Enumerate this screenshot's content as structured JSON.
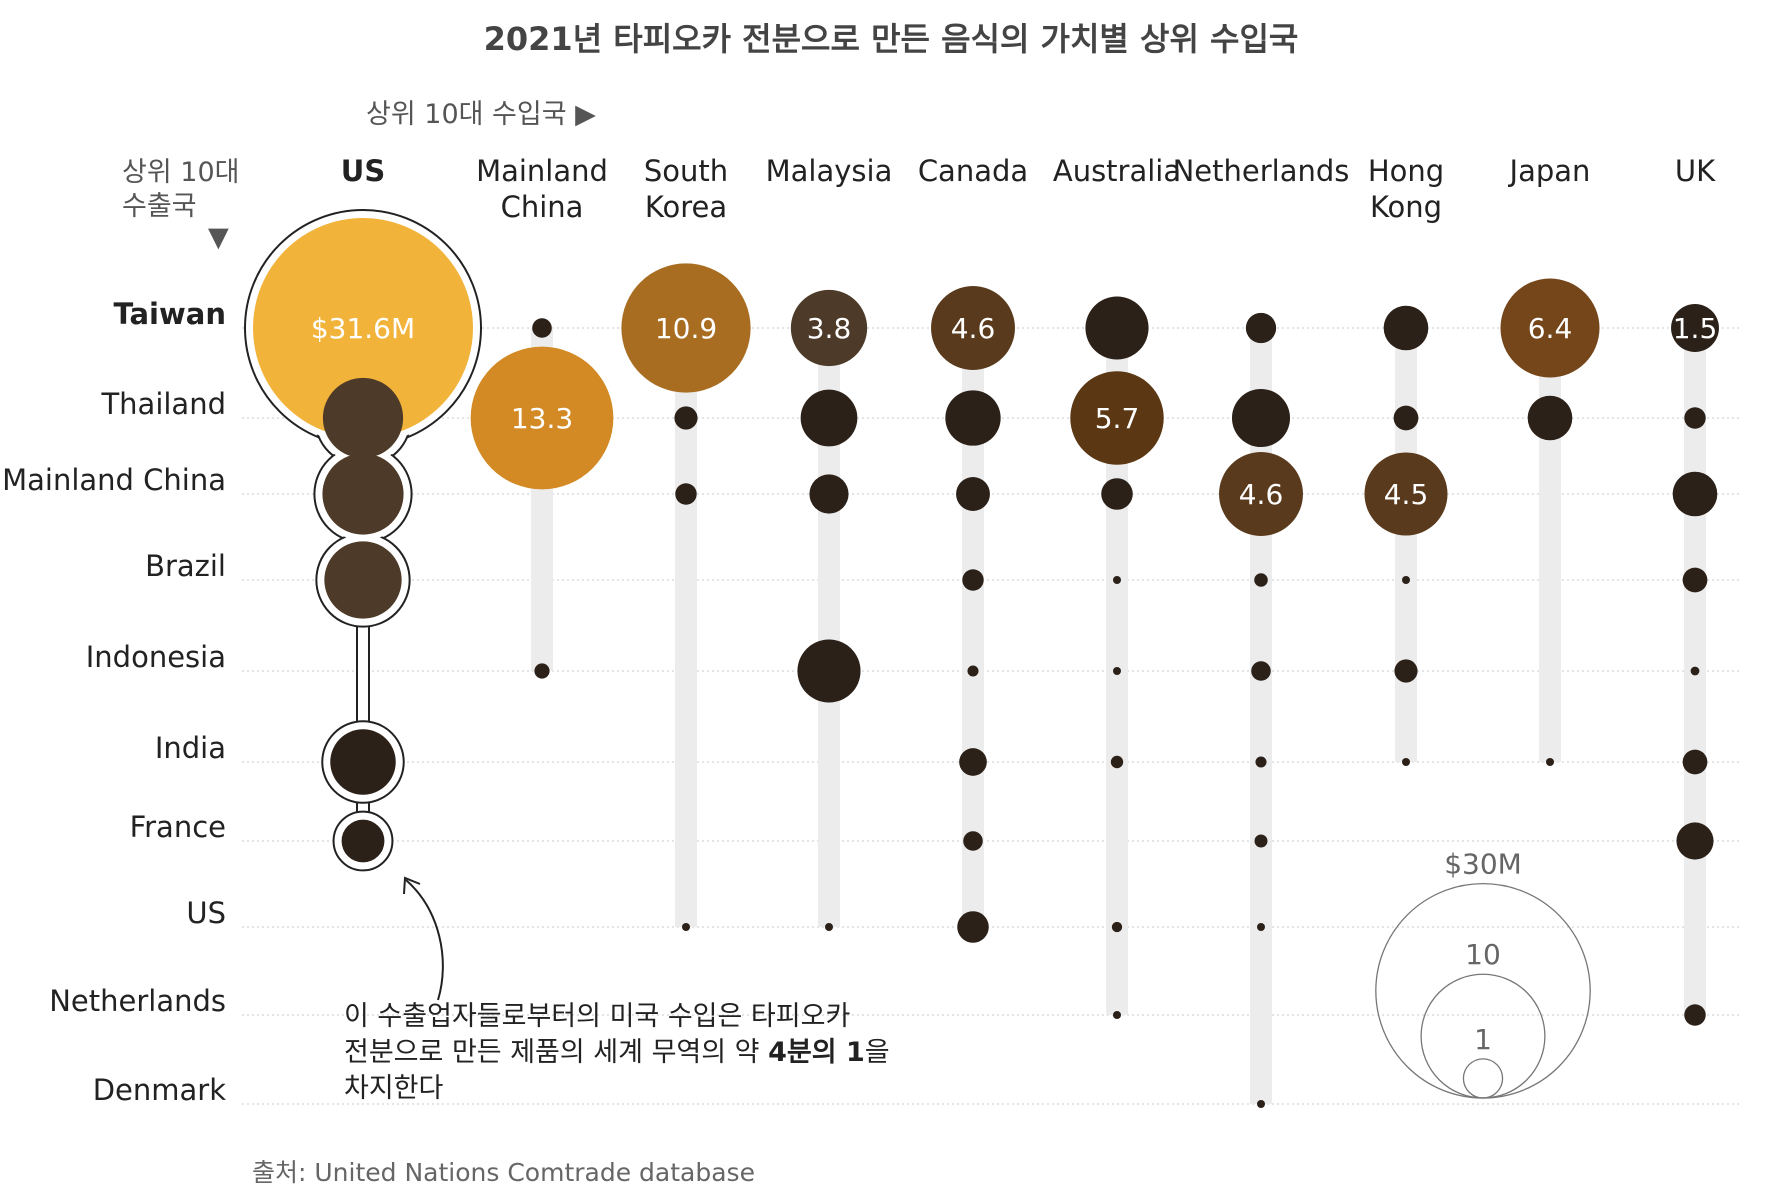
{
  "title": "2021년 타피오카 전분으로 만든 음식의 가치별 상위 수입국",
  "importer_hint": "상위 10대 수입국 ▶",
  "exporter_hint_line1": "상위 10대",
  "exporter_hint_line2": "수출국",
  "exporter_hint_arrow": "▼",
  "annotation": {
    "line1": "이 수출업자들로부터의 미국 수입은 타피오카",
    "line2_before": "전분으로 만든 제품의 세계 무역의 약 ",
    "line2_bold": "4분의 1",
    "line2_after": "을",
    "line3": "차지한다"
  },
  "legend": {
    "labels": [
      "$30M",
      "10",
      "1"
    ],
    "values": [
      30,
      10,
      1
    ]
  },
  "source": "출처: United Nations Comtrade database",
  "colors": {
    "highlight": "#f2b33a",
    "dark": "#2a1e12"
  },
  "chart_data": {
    "type": "bubble-matrix",
    "title": "2021년 타피오카 전분으로 만든 음식의 가치별 상위 수입국",
    "importers": [
      {
        "line1": "US",
        "line2": ""
      },
      {
        "line1": "Mainland",
        "line2": "China"
      },
      {
        "line1": "South",
        "line2": "Korea"
      },
      {
        "line1": "Malaysia",
        "line2": ""
      },
      {
        "line1": "Canada",
        "line2": ""
      },
      {
        "line1": "Australia",
        "line2": ""
      },
      {
        "line1": "Netherlands",
        "line2": ""
      },
      {
        "line1": "Hong",
        "line2": "Kong"
      },
      {
        "line1": "Japan",
        "line2": ""
      },
      {
        "line1": "UK",
        "line2": ""
      }
    ],
    "exporters": [
      "Taiwan",
      "Thailand",
      "Mainland China",
      "Brazil",
      "Indonesia",
      "India",
      "France",
      "US",
      "Netherlands",
      "Denmark"
    ],
    "values_unit": "US$ million",
    "values": [
      [
        31.6,
        4.2,
        4.3,
        3.9,
        0,
        2.8,
        1.2,
        0,
        0,
        0
      ],
      [
        0.25,
        13.3,
        0,
        0,
        0.15,
        0,
        0,
        0,
        0,
        0
      ],
      [
        10.9,
        0.35,
        0.3,
        0,
        0,
        0,
        0,
        0.02,
        0,
        0
      ],
      [
        3.8,
        2.1,
        1.0,
        0,
        2.6,
        0,
        0,
        0.03,
        0,
        0
      ],
      [
        4.6,
        2.0,
        0.75,
        0.3,
        0.08,
        0.5,
        0.25,
        0.65,
        0,
        0
      ],
      [
        2.6,
        5.7,
        0.65,
        0.04,
        0.01,
        0.1,
        0,
        0.07,
        0.03,
        0
      ],
      [
        0.6,
        2.2,
        4.6,
        0.12,
        0.25,
        0.08,
        0.11,
        0.01,
        0,
        0.03
      ],
      [
        1.3,
        0.4,
        4.5,
        0.01,
        0.35,
        0.01,
        0,
        0,
        0,
        0
      ],
      [
        6.4,
        1.3,
        0,
        0,
        0,
        0.01,
        0,
        0,
        0,
        0
      ],
      [
        1.5,
        0.3,
        1.3,
        0.4,
        0.05,
        0.4,
        0.9,
        0,
        0.3,
        0
      ]
    ],
    "value_labels": [
      [
        "$31.6M",
        "",
        "",
        "",
        "",
        "",
        "",
        "",
        "",
        ""
      ],
      [
        "",
        "13.3",
        "",
        "",
        "",
        "",
        "",
        "",
        "",
        ""
      ],
      [
        "10.9",
        "",
        "",
        "",
        "",
        "",
        "",
        "",
        "",
        ""
      ],
      [
        "3.8",
        "",
        "",
        "",
        "",
        "",
        "",
        "",
        "",
        ""
      ],
      [
        "4.6",
        "",
        "",
        "",
        "",
        "",
        "",
        "",
        "",
        ""
      ],
      [
        "",
        "5.7",
        "",
        "",
        "",
        "",
        "",
        "",
        "",
        ""
      ],
      [
        "",
        "",
        "4.6",
        "",
        "",
        "",
        "",
        "",
        "",
        ""
      ],
      [
        "",
        "",
        "4.5",
        "",
        "",
        "",
        "",
        "",
        "",
        ""
      ],
      [
        "6.4",
        "",
        "",
        "",
        "",
        "",
        "",
        "",
        "",
        ""
      ],
      [
        "1.5",
        "",
        "",
        "",
        "",
        "",
        "",
        "",
        "",
        ""
      ]
    ],
    "legend_values": [
      30,
      10,
      1
    ]
  }
}
